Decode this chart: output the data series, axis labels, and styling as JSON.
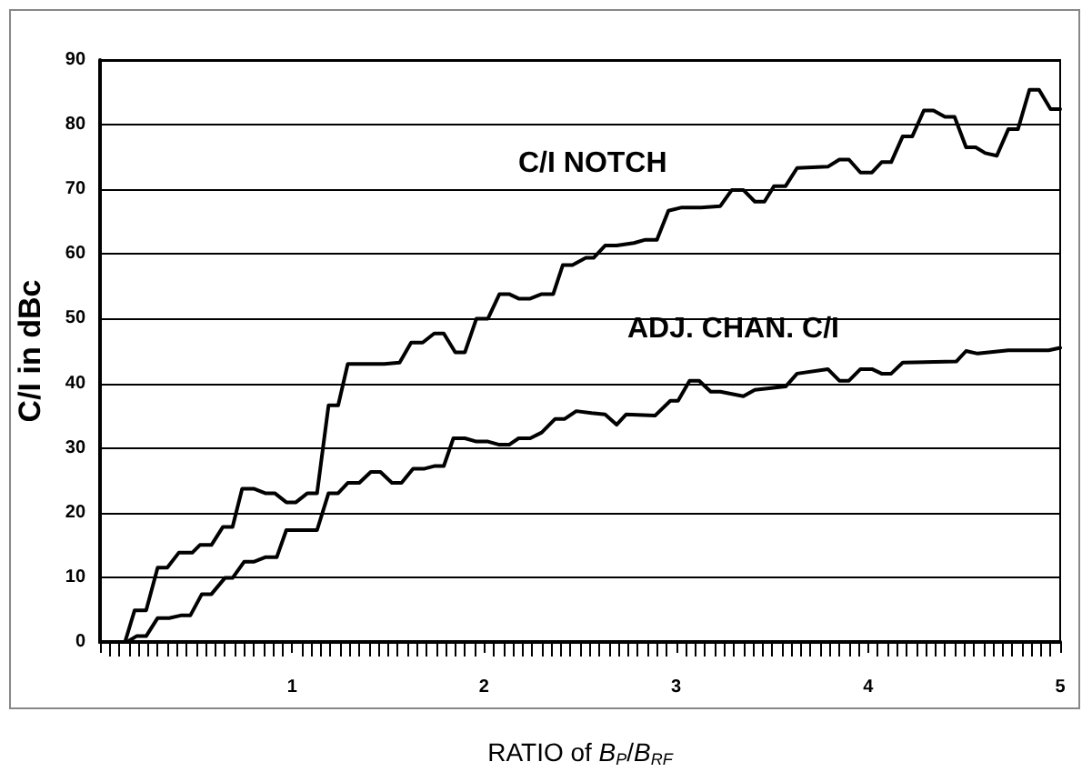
{
  "chart_data": {
    "type": "line",
    "xlabel": "RATIO of B$_{P}$/B$_{RF}$",
    "ylabel": "C/I in dBc",
    "xlim": [
      0,
      5
    ],
    "xticks": [
      1,
      2,
      3,
      4,
      5
    ],
    "ylim": [
      0,
      90
    ],
    "yticks": [
      0,
      10,
      20,
      30,
      40,
      50,
      60,
      70,
      80,
      90
    ],
    "grid": "y",
    "legend": false,
    "marker": "none",
    "line_style": "solid",
    "series": [
      {
        "name": "C/I NOTCH",
        "color": "#000000",
        "x": [
          0,
          0.13,
          0.18,
          0.24,
          0.3,
          0.35,
          0.41,
          0.48,
          0.52,
          0.58,
          0.64,
          0.69,
          0.74,
          0.8,
          0.86,
          0.91,
          0.97,
          1.02,
          1.08,
          1.13,
          1.19,
          1.24,
          1.29,
          1.48,
          1.56,
          1.62,
          1.68,
          1.74,
          1.79,
          1.85,
          1.9,
          1.96,
          2.02,
          2.08,
          2.13,
          2.18,
          2.24,
          2.3,
          2.36,
          2.41,
          2.46,
          2.53,
          2.57,
          2.63,
          2.69,
          2.78,
          2.84,
          2.9,
          2.96,
          3.03,
          3.13,
          3.23,
          3.29,
          3.35,
          3.41,
          3.46,
          3.51,
          3.57,
          3.63,
          3.79,
          3.85,
          3.9,
          3.96,
          4.02,
          4.07,
          4.12,
          4.18,
          4.23,
          4.29,
          4.34,
          4.4,
          4.45,
          4.51,
          4.56,
          4.61,
          4.67,
          4.73,
          4.78,
          4.84,
          4.89,
          4.95,
          5
        ],
        "values": [
          0,
          0,
          4.9,
          4.9,
          11.5,
          11.5,
          13.8,
          13.8,
          15,
          15,
          17.8,
          17.8,
          23.7,
          23.7,
          23,
          23,
          21.6,
          21.6,
          23,
          23,
          36.6,
          36.6,
          43,
          43,
          43.2,
          46.3,
          46.3,
          47.7,
          47.7,
          44.8,
          44.8,
          50,
          50,
          53.8,
          53.8,
          53.1,
          53.1,
          53.8,
          53.8,
          58.3,
          58.3,
          59.4,
          59.4,
          61.3,
          61.3,
          61.7,
          62.2,
          62.2,
          66.7,
          67.2,
          67.2,
          67.4,
          69.9,
          69.9,
          68.1,
          68.1,
          70.5,
          70.5,
          73.3,
          73.5,
          74.6,
          74.6,
          72.6,
          72.6,
          74.2,
          74.2,
          78.2,
          78.2,
          82.2,
          82.2,
          81.2,
          81.2,
          76.5,
          76.5,
          75.6,
          75.2,
          79.3,
          79.3,
          85.4,
          85.4,
          82.4,
          82.4
        ]
      },
      {
        "name": "ADJ. CHAN. C/I",
        "color": "#000000",
        "x": [
          0,
          0.14,
          0.19,
          0.24,
          0.3,
          0.36,
          0.42,
          0.47,
          0.53,
          0.58,
          0.65,
          0.69,
          0.75,
          0.8,
          0.86,
          0.92,
          0.97,
          1.13,
          1.19,
          1.24,
          1.29,
          1.35,
          1.41,
          1.46,
          1.52,
          1.57,
          1.63,
          1.69,
          1.74,
          1.79,
          1.84,
          1.9,
          1.96,
          2.02,
          2.08,
          2.13,
          2.18,
          2.24,
          2.3,
          2.37,
          2.42,
          2.48,
          2.56,
          2.63,
          2.69,
          2.74,
          2.89,
          2.97,
          3.01,
          3.07,
          3.12,
          3.18,
          3.23,
          3.35,
          3.41,
          3.57,
          3.63,
          3.79,
          3.85,
          3.9,
          3.96,
          4.02,
          4.07,
          4.12,
          4.18,
          4.46,
          4.51,
          4.57,
          4.73,
          4.94,
          5
        ],
        "values": [
          0,
          0,
          0.9,
          0.9,
          3.7,
          3.7,
          4.1,
          4.1,
          7.4,
          7.4,
          9.9,
          9.9,
          12.4,
          12.4,
          13.1,
          13.1,
          17.3,
          17.3,
          23,
          23,
          24.6,
          24.6,
          26.3,
          26.3,
          24.6,
          24.6,
          26.8,
          26.8,
          27.2,
          27.2,
          31.5,
          31.5,
          31,
          31,
          30.5,
          30.5,
          31.5,
          31.5,
          32.4,
          34.5,
          34.5,
          35.7,
          35.4,
          35.2,
          33.6,
          35.2,
          35,
          37.3,
          37.3,
          40.4,
          40.4,
          38.7,
          38.7,
          38,
          39,
          39.5,
          41.5,
          42.2,
          40.4,
          40.4,
          42.2,
          42.2,
          41.5,
          41.5,
          43.2,
          43.4,
          45,
          44.6,
          45.1,
          45.1,
          45.5
        ]
      }
    ]
  }
}
